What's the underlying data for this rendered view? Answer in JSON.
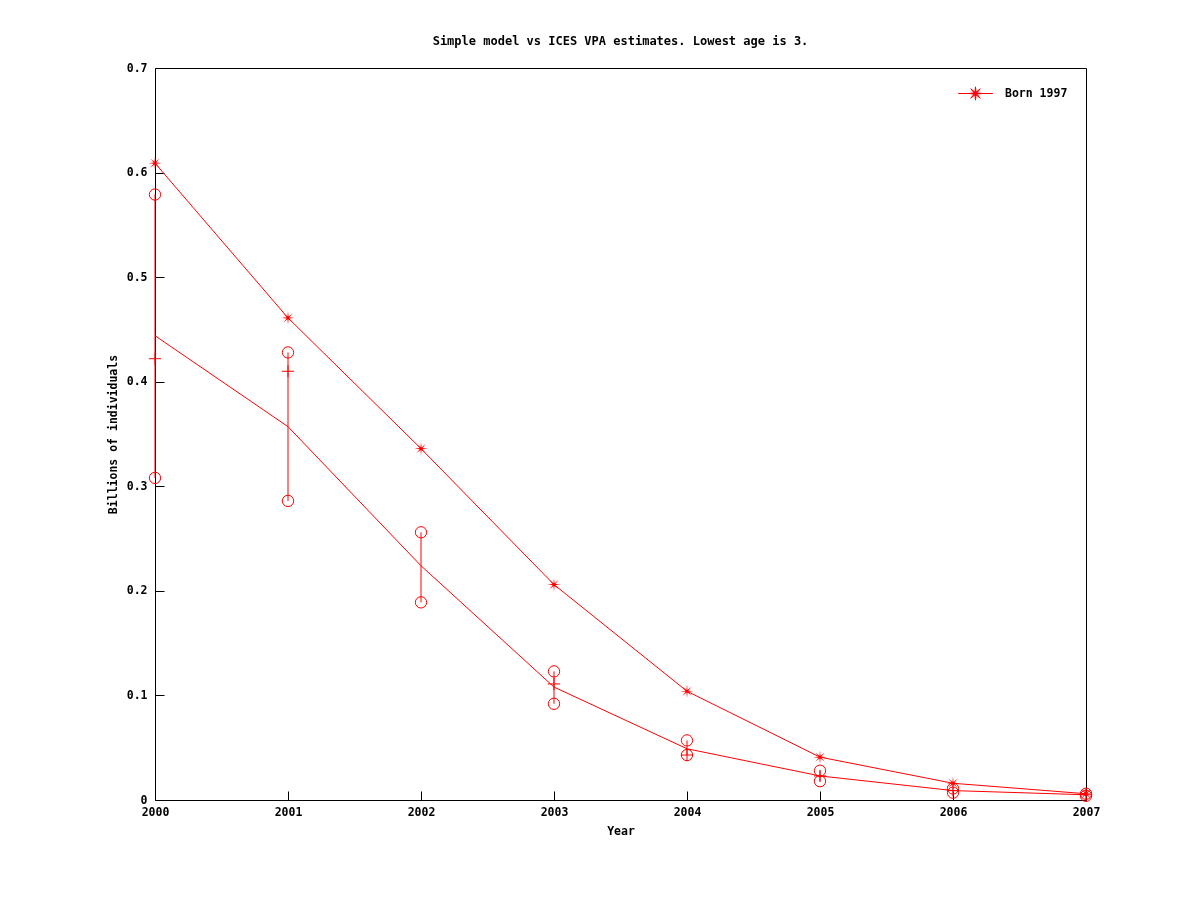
{
  "chart_data": {
    "type": "line",
    "title": "Simple model vs ICES VPA estimates. Lowest age is 3.",
    "xlabel": "Year",
    "ylabel": "Billions of individuals",
    "x": [
      2000,
      2001,
      2002,
      2003,
      2004,
      2005,
      2006,
      2007
    ],
    "xlim": [
      2000,
      2007
    ],
    "xticks": [
      2000,
      2001,
      2002,
      2003,
      2004,
      2005,
      2006,
      2007
    ],
    "ylim": [
      0,
      0.7
    ],
    "yticks": [
      0,
      0.1,
      0.2,
      0.3,
      0.4,
      0.5,
      0.6,
      0.7
    ],
    "legend": "top right",
    "series": [
      {
        "name": "Born 1997",
        "color": "#ff0000",
        "marker": "star",
        "values": [
          0.609,
          0.461,
          0.336,
          0.206,
          0.104,
          0.041,
          0.016,
          0.006
        ]
      },
      {
        "color": "#ff0000",
        "marker": "none",
        "values": [
          0.444,
          0.357,
          0.224,
          0.108,
          0.049,
          0.023,
          0.009,
          0.005
        ]
      },
      {
        "color": "#ff0000",
        "type": "scatter",
        "marker": "circle",
        "values": [
          0.579,
          0.428,
          0.256,
          0.123,
          0.057,
          0.028,
          0.011,
          0.006
        ]
      },
      {
        "color": "#ff0000",
        "type": "scatter",
        "marker": "circle",
        "values": [
          0.308,
          0.286,
          0.189,
          0.092,
          0.043,
          0.018,
          0.007,
          0.004
        ],
        "errors": [
          [
            0.308,
            0.579
          ],
          [
            0.286,
            0.428
          ],
          [
            0.189,
            0.256
          ],
          [
            0.092,
            0.123
          ],
          [
            0.043,
            0.057
          ],
          [
            0.018,
            0.028
          ],
          [
            0.007,
            0.011
          ],
          [
            0.004,
            0.006
          ]
        ]
      },
      {
        "color": "#ff0000",
        "type": "scatter",
        "marker": "cross",
        "values": [
          0.422,
          0.41,
          null,
          0.111,
          0.043,
          0.023,
          0.009,
          0.005
        ]
      }
    ]
  }
}
